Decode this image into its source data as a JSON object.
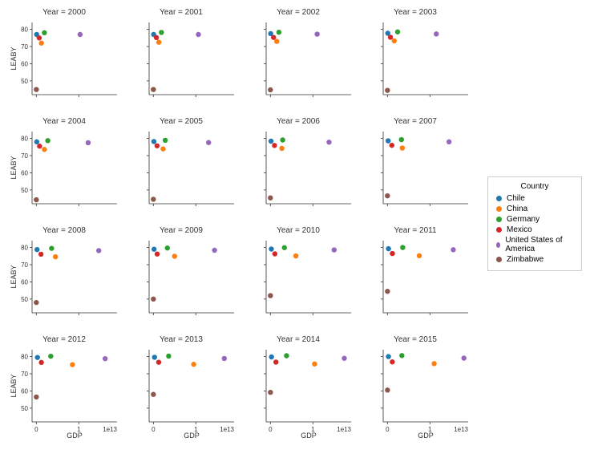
{
  "chart": {
    "type": "scatter-grid",
    "background_color": "#ffffff",
    "marker_size": 3.2,
    "ylabel": "LEABY",
    "xlabel": "GDP",
    "x_offset_text": "1e13",
    "ylim": [
      42,
      84
    ],
    "yticks": [
      50,
      60,
      70,
      80
    ],
    "xlim": [
      -1000000000000.0,
      19000000000000.0
    ],
    "xticks": [
      0,
      10000000000000.0
    ],
    "xtick_labels": [
      "0",
      "1"
    ],
    "title_fontsize": 10,
    "label_fontsize": 9,
    "tick_fontsize": 8,
    "spine_color": "#333333",
    "legend": {
      "title": "Country",
      "items": [
        {
          "label": "Chile",
          "color": "#1f77b4"
        },
        {
          "label": "China",
          "color": "#ff7f0e"
        },
        {
          "label": "Germany",
          "color": "#2ca02c"
        },
        {
          "label": "Mexico",
          "color": "#d62728"
        },
        {
          "label": "United States of America",
          "color": "#9467bd"
        },
        {
          "label": "Zimbabwe",
          "color": "#8c564b"
        }
      ]
    },
    "countries": [
      "Chile",
      "China",
      "Germany",
      "Mexico",
      "United States of America",
      "Zimbabwe"
    ],
    "colors": {
      "Chile": "#1f77b4",
      "China": "#ff7f0e",
      "Germany": "#2ca02c",
      "Mexico": "#d62728",
      "United States of America": "#9467bd",
      "Zimbabwe": "#8c564b"
    },
    "panels": [
      {
        "year": 2000,
        "title": "Year = 2000",
        "points": {
          "Chile": {
            "gdp": 80000000000.0,
            "leaby": 77
          },
          "China": {
            "gdp": 1200000000000.0,
            "leaby": 72
          },
          "Germany": {
            "gdp": 1900000000000.0,
            "leaby": 78
          },
          "Mexico": {
            "gdp": 680000000000.0,
            "leaby": 75
          },
          "United States of America": {
            "gdp": 10300000000000.0,
            "leaby": 77
          },
          "Zimbabwe": {
            "gdp": 7000000000.0,
            "leaby": 45
          }
        }
      },
      {
        "year": 2001,
        "title": "Year = 2001",
        "points": {
          "Chile": {
            "gdp": 70000000000.0,
            "leaby": 77
          },
          "China": {
            "gdp": 1300000000000.0,
            "leaby": 72.5
          },
          "Germany": {
            "gdp": 1900000000000.0,
            "leaby": 78.2
          },
          "Mexico": {
            "gdp": 720000000000.0,
            "leaby": 75.2
          },
          "United States of America": {
            "gdp": 10600000000000.0,
            "leaby": 77
          },
          "Zimbabwe": {
            "gdp": 7000000000.0,
            "leaby": 45
          }
        }
      },
      {
        "year": 2002,
        "title": "Year = 2002",
        "points": {
          "Chile": {
            "gdp": 70000000000.0,
            "leaby": 77.5
          },
          "China": {
            "gdp": 1500000000000.0,
            "leaby": 73
          },
          "Germany": {
            "gdp": 2000000000000.0,
            "leaby": 78.3
          },
          "Mexico": {
            "gdp": 740000000000.0,
            "leaby": 75.3
          },
          "United States of America": {
            "gdp": 11000000000000.0,
            "leaby": 77.2
          },
          "Zimbabwe": {
            "gdp": 6000000000.0,
            "leaby": 44.8
          }
        }
      },
      {
        "year": 2003,
        "title": "Year = 2003",
        "points": {
          "Chile": {
            "gdp": 80000000000.0,
            "leaby": 77.7
          },
          "China": {
            "gdp": 1600000000000.0,
            "leaby": 73.3
          },
          "Germany": {
            "gdp": 2400000000000.0,
            "leaby": 78.5
          },
          "Mexico": {
            "gdp": 710000000000.0,
            "leaby": 75.4
          },
          "United States of America": {
            "gdp": 11500000000000.0,
            "leaby": 77.3
          },
          "Zimbabwe": {
            "gdp": 6000000000.0,
            "leaby": 44.5
          }
        }
      },
      {
        "year": 2004,
        "title": "Year = 2004",
        "points": {
          "Chile": {
            "gdp": 100000000000.0,
            "leaby": 78
          },
          "China": {
            "gdp": 1900000000000.0,
            "leaby": 73.6
          },
          "Germany": {
            "gdp": 2700000000000.0,
            "leaby": 78.7
          },
          "Mexico": {
            "gdp": 770000000000.0,
            "leaby": 75.5
          },
          "United States of America": {
            "gdp": 12200000000000.0,
            "leaby": 77.5
          },
          "Zimbabwe": {
            "gdp": 6000000000.0,
            "leaby": 44.3
          }
        }
      },
      {
        "year": 2005,
        "title": "Year = 2005",
        "points": {
          "Chile": {
            "gdp": 120000000000.0,
            "leaby": 78.2
          },
          "China": {
            "gdp": 2300000000000.0,
            "leaby": 73.9
          },
          "Germany": {
            "gdp": 2800000000000.0,
            "leaby": 78.9
          },
          "Mexico": {
            "gdp": 870000000000.0,
            "leaby": 75.7
          },
          "United States of America": {
            "gdp": 13000000000000.0,
            "leaby": 77.6
          },
          "Zimbabwe": {
            "gdp": 6000000000.0,
            "leaby": 44.6
          }
        }
      },
      {
        "year": 2006,
        "title": "Year = 2006",
        "points": {
          "Chile": {
            "gdp": 150000000000.0,
            "leaby": 78.4
          },
          "China": {
            "gdp": 2700000000000.0,
            "leaby": 74.2
          },
          "Germany": {
            "gdp": 2900000000000.0,
            "leaby": 79.1
          },
          "Mexico": {
            "gdp": 970000000000.0,
            "leaby": 75.9
          },
          "United States of America": {
            "gdp": 13800000000000.0,
            "leaby": 77.8
          },
          "Zimbabwe": {
            "gdp": 5500000000.0,
            "leaby": 45.4
          }
        }
      },
      {
        "year": 2007,
        "title": "Year = 2007",
        "points": {
          "Chile": {
            "gdp": 170000000000.0,
            "leaby": 78.6
          },
          "China": {
            "gdp": 3500000000000.0,
            "leaby": 74.4
          },
          "Germany": {
            "gdp": 3300000000000.0,
            "leaby": 79.3
          },
          "Mexico": {
            "gdp": 1040000000000.0,
            "leaby": 76.0
          },
          "United States of America": {
            "gdp": 14500000000000.0,
            "leaby": 78.0
          },
          "Zimbabwe": {
            "gdp": 5000000000.0,
            "leaby": 46.6
          }
        }
      },
      {
        "year": 2008,
        "title": "Year = 2008",
        "points": {
          "Chile": {
            "gdp": 180000000000.0,
            "leaby": 78.8
          },
          "China": {
            "gdp": 4500000000000.0,
            "leaby": 74.6
          },
          "Germany": {
            "gdp": 3600000000000.0,
            "leaby": 79.5
          },
          "Mexico": {
            "gdp": 1100000000000.0,
            "leaby": 76.1
          },
          "United States of America": {
            "gdp": 14700000000000.0,
            "leaby": 78.2
          },
          "Zimbabwe": {
            "gdp": 4500000000.0,
            "leaby": 48.0
          }
        }
      },
      {
        "year": 2009,
        "title": "Year = 2009",
        "points": {
          "Chile": {
            "gdp": 170000000000.0,
            "leaby": 79.0
          },
          "China": {
            "gdp": 5000000000000.0,
            "leaby": 74.9
          },
          "Germany": {
            "gdp": 3300000000000.0,
            "leaby": 79.7
          },
          "Mexico": {
            "gdp": 900000000000.0,
            "leaby": 76.2
          },
          "United States of America": {
            "gdp": 14400000000000.0,
            "leaby": 78.4
          },
          "Zimbabwe": {
            "gdp": 8000000000.0,
            "leaby": 50.0
          }
        }
      },
      {
        "year": 2010,
        "title": "Year = 2010",
        "points": {
          "Chile": {
            "gdp": 220000000000.0,
            "leaby": 79.1
          },
          "China": {
            "gdp": 6000000000000.0,
            "leaby": 75.1
          },
          "Germany": {
            "gdp": 3300000000000.0,
            "leaby": 79.9
          },
          "Mexico": {
            "gdp": 1050000000000.0,
            "leaby": 76.3
          },
          "United States of America": {
            "gdp": 15000000000000.0,
            "leaby": 78.6
          },
          "Zimbabwe": {
            "gdp": 9000000000.0,
            "leaby": 52.0
          }
        }
      },
      {
        "year": 2011,
        "title": "Year = 2011",
        "points": {
          "Chile": {
            "gdp": 250000000000.0,
            "leaby": 79.3
          },
          "China": {
            "gdp": 7500000000000.0,
            "leaby": 75.2
          },
          "Germany": {
            "gdp": 3600000000000.0,
            "leaby": 80.0
          },
          "Mexico": {
            "gdp": 1170000000000.0,
            "leaby": 76.5
          },
          "United States of America": {
            "gdp": 15500000000000.0,
            "leaby": 78.7
          },
          "Zimbabwe": {
            "gdp": 11000000000.0,
            "leaby": 54.5
          }
        }
      },
      {
        "year": 2012,
        "title": "Year = 2012",
        "points": {
          "Chile": {
            "gdp": 270000000000.0,
            "leaby": 79.5
          },
          "China": {
            "gdp": 8500000000000.0,
            "leaby": 75.3
          },
          "Germany": {
            "gdp": 3400000000000.0,
            "leaby": 80.2
          },
          "Mexico": {
            "gdp": 1190000000000.0,
            "leaby": 76.6
          },
          "United States of America": {
            "gdp": 16200000000000.0,
            "leaby": 78.8
          },
          "Zimbabwe": {
            "gdp": 13000000000.0,
            "leaby": 56.5
          }
        }
      },
      {
        "year": 2013,
        "title": "Year = 2013",
        "points": {
          "Chile": {
            "gdp": 280000000000.0,
            "leaby": 79.6
          },
          "China": {
            "gdp": 9500000000000.0,
            "leaby": 75.5
          },
          "Germany": {
            "gdp": 3600000000000.0,
            "leaby": 80.3
          },
          "Mexico": {
            "gdp": 1260000000000.0,
            "leaby": 76.7
          },
          "United States of America": {
            "gdp": 16700000000000.0,
            "leaby": 78.9
          },
          "Zimbabwe": {
            "gdp": 15000000000.0,
            "leaby": 58.0
          }
        }
      },
      {
        "year": 2014,
        "title": "Year = 2014",
        "points": {
          "Chile": {
            "gdp": 260000000000.0,
            "leaby": 79.8
          },
          "China": {
            "gdp": 10400000000000.0,
            "leaby": 75.7
          },
          "Germany": {
            "gdp": 3800000000000.0,
            "leaby": 80.5
          },
          "Mexico": {
            "gdp": 1300000000000.0,
            "leaby": 76.8
          },
          "United States of America": {
            "gdp": 17400000000000.0,
            "leaby": 79.0
          },
          "Zimbabwe": {
            "gdp": 16000000000.0,
            "leaby": 59.2
          }
        }
      },
      {
        "year": 2015,
        "title": "Year = 2015",
        "points": {
          "Chile": {
            "gdp": 240000000000.0,
            "leaby": 80.0
          },
          "China": {
            "gdp": 11000000000000.0,
            "leaby": 75.9
          },
          "Germany": {
            "gdp": 3400000000000.0,
            "leaby": 80.6
          },
          "Mexico": {
            "gdp": 1150000000000.0,
            "leaby": 76.9
          },
          "United States of America": {
            "gdp": 18000000000000.0,
            "leaby": 79.1
          },
          "Zimbabwe": {
            "gdp": 16000000000.0,
            "leaby": 60.5
          }
        }
      }
    ]
  }
}
